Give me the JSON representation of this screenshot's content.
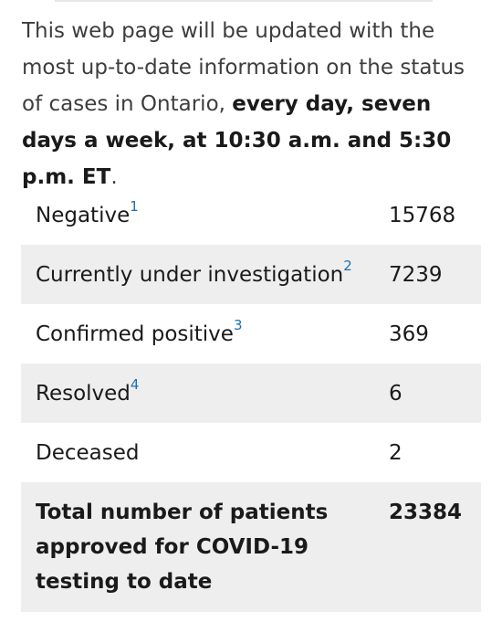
{
  "intro": {
    "text_plain": "This web page will be updated with the most up-to-date information on the status of cases in Ontario, ",
    "text_bold": "every day, seven days a week, at 10:30 a.m. and 5:30 p.m. ET",
    "text_end": "."
  },
  "table": {
    "rows": [
      {
        "label": "Negative",
        "footnote": "1",
        "value": "15768"
      },
      {
        "label": "Currently under investigation",
        "footnote": "2",
        "value": "7239"
      },
      {
        "label": "Confirmed positive",
        "footnote": "3",
        "value": "369"
      },
      {
        "label": "Resolved",
        "footnote": "4",
        "value": "6"
      },
      {
        "label": "Deceased",
        "footnote": "",
        "value": "2"
      }
    ],
    "total": {
      "label": "Total number of patients approved for COVID-19 testing to date",
      "value": "23384"
    }
  },
  "colors": {
    "text": "#1a1a1a",
    "shaded_row": "#eeeeee",
    "footnote_link": "#1a6fb5"
  }
}
